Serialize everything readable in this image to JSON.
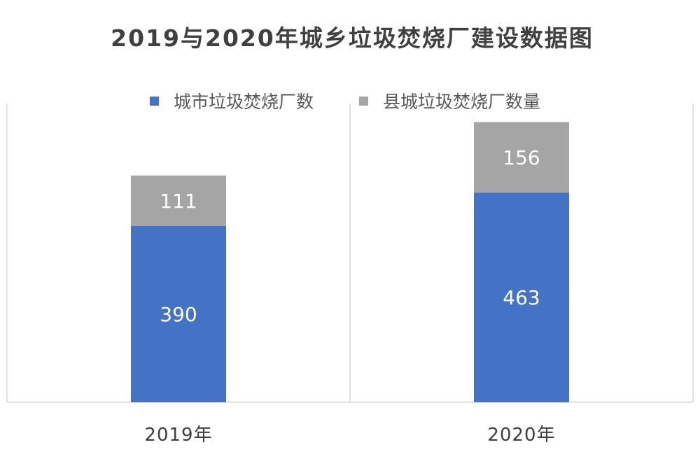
{
  "chart_data": {
    "type": "bar",
    "stacked": true,
    "title": "2019与2020年城乡垃圾焚烧厂建设数据图",
    "categories": [
      "2019年",
      "2020年"
    ],
    "series": [
      {
        "name": "城市垃圾焚烧厂数",
        "values": [
          390,
          463
        ],
        "color": "#4472C4"
      },
      {
        "name": "县城垃圾焚烧厂数量",
        "values": [
          111,
          156
        ],
        "color": "#A5A5A5"
      }
    ],
    "ylim": [
      0,
      660
    ],
    "grid": false,
    "legend_position": "top-center",
    "data_labels": true
  }
}
